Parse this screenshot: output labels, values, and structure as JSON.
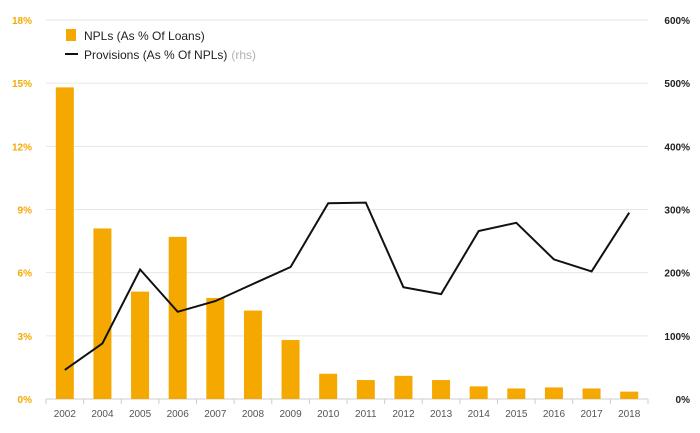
{
  "chart_data": {
    "type": "bar",
    "categories": [
      "2002",
      "2004",
      "2005",
      "2006",
      "2007",
      "2008",
      "2009",
      "2010",
      "2011",
      "2012",
      "2013",
      "2014",
      "2015",
      "2016",
      "2017",
      "2018"
    ],
    "series": [
      {
        "name": "NPLs (As % Of Loans)",
        "type": "bar",
        "axis": "left",
        "color": "#f5a800",
        "values": [
          14.8,
          8.1,
          5.1,
          7.7,
          4.8,
          4.2,
          2.8,
          1.2,
          0.9,
          1.1,
          0.9,
          0.6,
          0.5,
          0.55,
          0.5,
          0.35
        ]
      },
      {
        "name": "Provisions (As % Of NPLs)",
        "name_suffix": "(rhs)",
        "type": "line",
        "axis": "right",
        "color": "#111111",
        "values": [
          46,
          88,
          205,
          138,
          155,
          182,
          209,
          310,
          311,
          177,
          166,
          266,
          279,
          221,
          202,
          295
        ]
      }
    ],
    "y_left": {
      "ticks": [
        "0%",
        "3%",
        "6%",
        "9%",
        "12%",
        "15%",
        "18%"
      ],
      "range": [
        0,
        18
      ]
    },
    "y_right": {
      "ticks": [
        "0%",
        "100%",
        "200%",
        "300%",
        "400%",
        "500%",
        "600%"
      ],
      "range": [
        0,
        600
      ]
    },
    "grid": true,
    "legend_position": "top-left"
  }
}
